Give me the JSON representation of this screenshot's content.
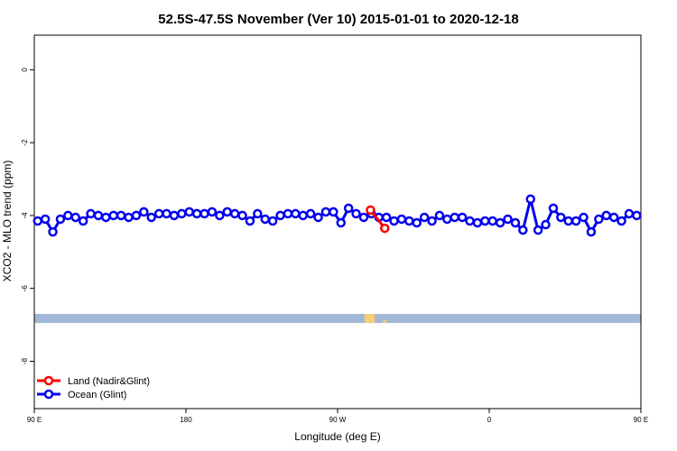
{
  "chart_data": {
    "type": "line",
    "title": "52.5S-47.5S November (Ver 10)   2015-01-01 to 2020-12-18",
    "xlabel": "Longitude (deg E)",
    "ylabel": "XCO2 - MLO trend (ppm)",
    "xlim": [
      90,
      450
    ],
    "ylim": [
      -9.3,
      0.95
    ],
    "x_ticks": [
      {
        "value": 90,
        "label": "90 E"
      },
      {
        "value": 180,
        "label": "180"
      },
      {
        "value": 270,
        "label": "90 W"
      },
      {
        "value": 360,
        "label": "0"
      },
      {
        "value": 450,
        "label": "90 E"
      }
    ],
    "y_ticks": [
      {
        "value": 0,
        "label": "0"
      },
      {
        "value": -2,
        "label": "-2"
      },
      {
        "value": -4,
        "label": "-4"
      },
      {
        "value": -6,
        "label": "-6"
      },
      {
        "value": -8,
        "label": "-8"
      }
    ],
    "legend_position": "bottom-left",
    "grid": false,
    "map_strip": {
      "y_top": -6.7,
      "y_bottom": -6.95,
      "ocean_color": "#a3b8d8",
      "land_color": "#f5cf72"
    },
    "series": [
      {
        "name": "Land (Nadir&Glint)",
        "color": "#ff0000",
        "x": [
          289.5,
          298.0
        ],
        "y": [
          -3.85,
          -4.35
        ]
      },
      {
        "name": "Ocean (Glint)",
        "color": "#0000ee",
        "x": [
          92,
          96.5,
          101,
          105.5,
          110,
          114.5,
          119,
          123.5,
          128,
          132.5,
          137,
          141.5,
          146,
          150.5,
          155,
          159.5,
          164,
          168.5,
          173,
          177.5,
          182,
          186.5,
          191,
          195.5,
          200,
          204.5,
          209,
          213.5,
          218,
          222.5,
          227,
          231.5,
          236,
          240.5,
          245,
          249.5,
          254,
          258.5,
          263,
          267.5,
          272,
          276.5,
          281,
          285.5,
          290,
          294.5,
          299,
          303.5,
          308,
          312.5,
          317,
          321.5,
          326,
          330.5,
          335,
          339.5,
          344,
          348.5,
          353,
          357.5,
          362,
          366.5,
          371,
          375.5,
          380,
          384.5,
          389,
          393.5,
          398,
          402.5,
          407,
          411.5,
          416,
          420.5,
          425,
          429.5,
          434,
          438.5,
          443,
          447.5,
          452
        ],
        "y": [
          -4.15,
          -4.1,
          -4.45,
          -4.1,
          -4.0,
          -4.05,
          -4.15,
          -3.95,
          -4.0,
          -4.05,
          -4.0,
          -4.0,
          -4.05,
          -4.0,
          -3.9,
          -4.05,
          -3.95,
          -3.95,
          -4.0,
          -3.95,
          -3.9,
          -3.95,
          -3.95,
          -3.9,
          -4.0,
          -3.9,
          -3.95,
          -4.0,
          -4.15,
          -3.95,
          -4.1,
          -4.15,
          -4.0,
          -3.95,
          -3.95,
          -4.0,
          -3.95,
          -4.05,
          -3.9,
          -3.9,
          -4.2,
          -3.8,
          -3.95,
          -4.05,
          -3.95,
          -4.05,
          -4.05,
          -4.15,
          -4.1,
          -4.15,
          -4.2,
          -4.05,
          -4.15,
          -4.0,
          -4.1,
          -4.05,
          -4.05,
          -4.15,
          -4.2,
          -4.15,
          -4.15,
          -4.2,
          -4.1,
          -4.2,
          -4.4,
          -3.55,
          -4.4,
          -4.25,
          -3.8,
          -4.05,
          -4.15,
          -4.15,
          -4.05,
          -4.45,
          -4.1,
          -4.0,
          -4.05,
          -4.15,
          -3.95,
          -4.0,
          -4.05
        ]
      }
    ]
  }
}
